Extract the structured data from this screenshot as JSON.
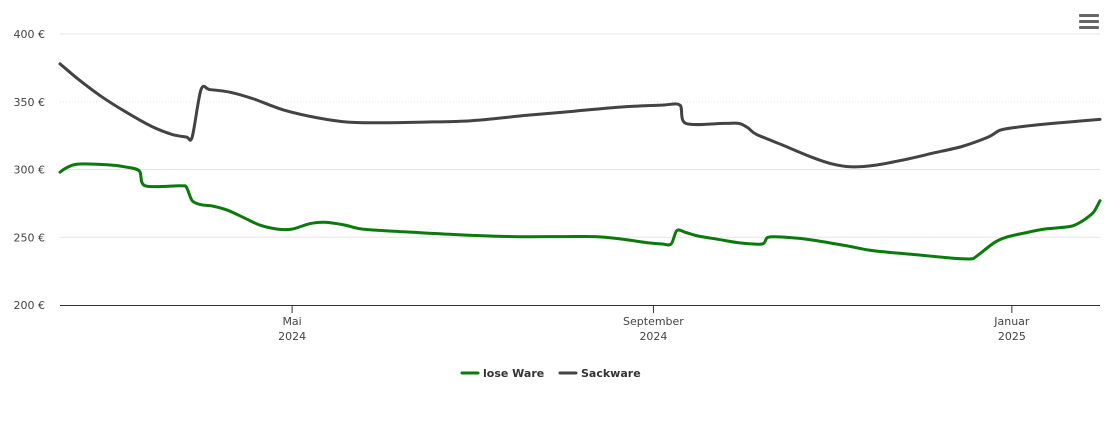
{
  "menu": {
    "icon": "hamburger-menu-icon"
  },
  "chart_data": {
    "type": "line",
    "x_type": "date",
    "y_unit": "€",
    "ylim": [
      200,
      400
    ],
    "y_ticks": [
      {
        "value": 200,
        "label": "200 €"
      },
      {
        "value": 250,
        "label": "250 €"
      },
      {
        "value": 300,
        "label": "300 €"
      },
      {
        "value": 350,
        "label": "350 €"
      },
      {
        "value": 400,
        "label": "400 €"
      }
    ],
    "xlim": [
      "2024-02-12",
      "2025-01-31"
    ],
    "x_ticks": [
      {
        "date": "2024-05-01",
        "month": "Mai",
        "year": "2024"
      },
      {
        "date": "2024-09-01",
        "month": "September",
        "year": "2024"
      },
      {
        "date": "2025-01-01",
        "month": "Januar",
        "year": "2025"
      }
    ],
    "grid": true,
    "legend_position": "bottom-center",
    "series": [
      {
        "name": "lose Ware",
        "color": "#0a7a0a",
        "points": [
          [
            "2024-02-12",
            298
          ],
          [
            "2024-02-14",
            301
          ],
          [
            "2024-02-18",
            304
          ],
          [
            "2024-02-28",
            303.5
          ],
          [
            "2024-03-05",
            302
          ],
          [
            "2024-03-10",
            299
          ],
          [
            "2024-03-12",
            288
          ],
          [
            "2024-03-24",
            288
          ],
          [
            "2024-03-26",
            287
          ],
          [
            "2024-03-28",
            277
          ],
          [
            "2024-03-31",
            274
          ],
          [
            "2024-04-04",
            273
          ],
          [
            "2024-04-09",
            270
          ],
          [
            "2024-04-15",
            264
          ],
          [
            "2024-04-20",
            259
          ],
          [
            "2024-04-26",
            256
          ],
          [
            "2024-05-01",
            256
          ],
          [
            "2024-05-07",
            260
          ],
          [
            "2024-05-12",
            261
          ],
          [
            "2024-05-19",
            259
          ],
          [
            "2024-05-25",
            256
          ],
          [
            "2024-06-08",
            254
          ],
          [
            "2024-06-25",
            252
          ],
          [
            "2024-07-15",
            250.5
          ],
          [
            "2024-08-01",
            250.5
          ],
          [
            "2024-08-12",
            250.5
          ],
          [
            "2024-08-20",
            249
          ],
          [
            "2024-08-30",
            246
          ],
          [
            "2024-09-04",
            245
          ],
          [
            "2024-09-07",
            245
          ],
          [
            "2024-09-09",
            255
          ],
          [
            "2024-09-12",
            253.5
          ],
          [
            "2024-09-16",
            251
          ],
          [
            "2024-09-23",
            248.5
          ],
          [
            "2024-09-30",
            246
          ],
          [
            "2024-10-08",
            245
          ],
          [
            "2024-10-10",
            250
          ],
          [
            "2024-10-16",
            250
          ],
          [
            "2024-10-25",
            248
          ],
          [
            "2024-11-05",
            244
          ],
          [
            "2024-11-15",
            240
          ],
          [
            "2024-11-30",
            237
          ],
          [
            "2024-12-12",
            234.5
          ],
          [
            "2024-12-18",
            234
          ],
          [
            "2024-12-20",
            236
          ],
          [
            "2024-12-26",
            246
          ],
          [
            "2024-12-30",
            250
          ],
          [
            "2025-01-05",
            253
          ],
          [
            "2025-01-12",
            256
          ],
          [
            "2025-01-21",
            258
          ],
          [
            "2025-01-25",
            262
          ],
          [
            "2025-01-27",
            265
          ],
          [
            "2025-01-29",
            269
          ],
          [
            "2025-01-31",
            277
          ]
        ]
      },
      {
        "name": "Sackware",
        "color": "#434343",
        "points": [
          [
            "2024-02-12",
            378
          ],
          [
            "2024-02-18",
            367
          ],
          [
            "2024-02-26",
            354
          ],
          [
            "2024-03-05",
            343
          ],
          [
            "2024-03-14",
            332
          ],
          [
            "2024-03-21",
            326
          ],
          [
            "2024-03-26",
            324
          ],
          [
            "2024-03-28",
            324
          ],
          [
            "2024-03-31",
            359
          ],
          [
            "2024-04-03",
            359
          ],
          [
            "2024-04-10",
            357
          ],
          [
            "2024-04-18",
            352
          ],
          [
            "2024-04-28",
            344
          ],
          [
            "2024-05-10",
            338
          ],
          [
            "2024-05-20",
            335
          ],
          [
            "2024-05-30",
            334.5
          ],
          [
            "2024-06-15",
            335
          ],
          [
            "2024-07-01",
            336
          ],
          [
            "2024-07-20",
            340
          ],
          [
            "2024-08-05",
            343
          ],
          [
            "2024-08-20",
            346
          ],
          [
            "2024-09-04",
            347.5
          ],
          [
            "2024-09-10",
            347.5
          ],
          [
            "2024-09-12",
            334
          ],
          [
            "2024-09-25",
            334
          ],
          [
            "2024-09-30",
            334
          ],
          [
            "2024-10-03",
            331
          ],
          [
            "2024-10-06",
            326
          ],
          [
            "2024-10-15",
            318
          ],
          [
            "2024-10-25",
            309
          ],
          [
            "2024-11-01",
            304
          ],
          [
            "2024-11-07",
            302
          ],
          [
            "2024-11-15",
            303
          ],
          [
            "2024-11-25",
            307
          ],
          [
            "2024-12-05",
            312
          ],
          [
            "2024-12-15",
            317
          ],
          [
            "2024-12-24",
            324
          ],
          [
            "2024-12-28",
            329
          ],
          [
            "2025-01-02",
            331
          ],
          [
            "2025-01-10",
            333
          ],
          [
            "2025-01-20",
            335
          ],
          [
            "2025-01-31",
            337
          ]
        ]
      }
    ]
  }
}
